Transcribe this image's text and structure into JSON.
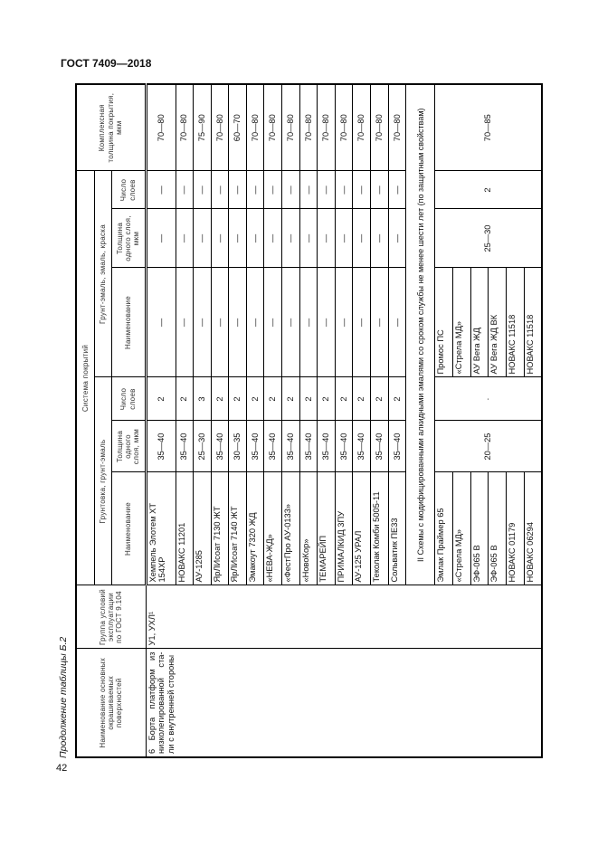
{
  "header": {
    "doc_title": "ГОСТ 7409—2018",
    "page_number": "42"
  },
  "caption": "Продолжение таблицы Б.2",
  "table": {
    "columns": {
      "surface": "Наименование основных окрашиваемых поверхностей",
      "group": "Группа условий эксплуатации по ГОСТ 9.104",
      "system": "Система покрытий",
      "primer_group": "Грунтовка, грунт-эмаль",
      "enamel_group": "Грунт-эмаль, эмаль, краска",
      "name": "Наименование",
      "thickness": "Толщина одного слоя, мкм",
      "layers": "Число слоев",
      "total": "Комплексная толщина покрытия, мкм"
    },
    "surface_value": "6 Борта платформ из низколегированной ста-ли с внутренней стороны",
    "group_value": "У1, УХЛ¹",
    "rows": [
      [
        "Хемпель Элотем ХТ 154ХР",
        "35—40",
        "2",
        "—",
        "—",
        "—",
        "70—80"
      ],
      [
        "НОВАКС 11201",
        "35—40",
        "2",
        "—",
        "—",
        "—",
        "70—80"
      ],
      [
        "АУ-1285",
        "25—30",
        "3",
        "—",
        "—",
        "—",
        "75—90"
      ],
      [
        "ЯрЛИсоат 7130 ЖТ",
        "35—40",
        "2",
        "—",
        "—",
        "—",
        "70—80"
      ],
      [
        "ЯрЛИсоат 7140 ЖТ",
        "30—35",
        "2",
        "—",
        "—",
        "—",
        "60—70"
      ],
      [
        "Эмакоут 7320 ЖД",
        "35—40",
        "2",
        "—",
        "—",
        "—",
        "70—80"
      ],
      [
        "«НЕВА-ЖД»",
        "35—40",
        "2",
        "—",
        "—",
        "—",
        "70—80"
      ],
      [
        "«ФестПро АУ-0133»",
        "35—40",
        "2",
        "—",
        "—",
        "—",
        "70—80"
      ],
      [
        "«НовоКор»",
        "35—40",
        "2",
        "—",
        "—",
        "—",
        "70—80"
      ],
      [
        "ТЕМАРЕЙП",
        "35—40",
        "2",
        "—",
        "—",
        "—",
        "70—80"
      ],
      [
        "ПРИМАЛКИД 3ПУ",
        "35—40",
        "2",
        "—",
        "—",
        "—",
        "70—80"
      ],
      [
        "АУ-125 УРАЛ",
        "35—40",
        "2",
        "—",
        "—",
        "—",
        "70—80"
      ],
      [
        "Теколак Комби 5005-11",
        "35—40",
        "2",
        "—",
        "—",
        "—",
        "70—80"
      ],
      [
        "Сольватик ПЕ33",
        "35—40",
        "2",
        "—",
        "—",
        "—",
        "70—80"
      ]
    ],
    "section2": {
      "title": "II Схемы с модифицированными алкидными эмалями со сроком службы не менее шести лет (по защитным свойствам)",
      "primer_names": [
        "Эмлак Праймер 65",
        "«Стрела МД»",
        "ЭФ-065 В",
        "ЭФ-065 В",
        "НОВАКС 01179",
        "НОВАКС 06294"
      ],
      "primer_thickness": "20—25",
      "primer_layers": "·",
      "enamel_names": [
        "Промос ПС",
        "«Стрела МД»",
        "АУ Вега ЖД",
        "АУ Вега ЖД ВК",
        "НОВАКС 11518",
        "НОВАКС 11518"
      ],
      "enamel_thickness": "25—30",
      "enamel_layers": "2",
      "total": "70—85"
    }
  }
}
